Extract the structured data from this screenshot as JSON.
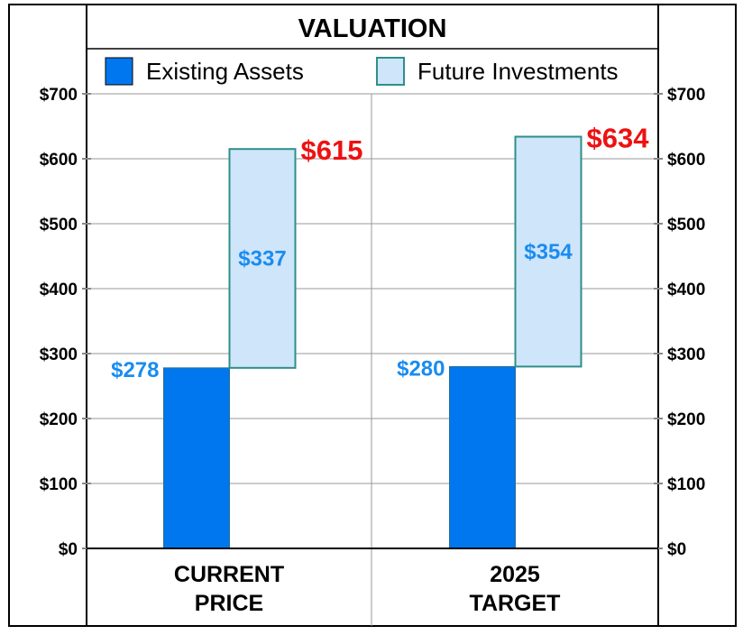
{
  "chart_data": {
    "type": "bar",
    "stacked": true,
    "title": "VALUATION",
    "categories": [
      "CURRENT PRICE",
      "2025 TARGET"
    ],
    "category_lines": [
      [
        "CURRENT",
        "PRICE"
      ],
      [
        "2025",
        "TARGET"
      ]
    ],
    "series": [
      {
        "name": "Existing Assets",
        "values": [
          278,
          280
        ],
        "labels": [
          "$278",
          "$280"
        ]
      },
      {
        "name": "Future Investments",
        "values": [
          337,
          354
        ],
        "labels": [
          "$337",
          "$354"
        ]
      }
    ],
    "totals": [
      615,
      634
    ],
    "total_labels": [
      "$615",
      "$634"
    ],
    "y_ticks": [
      "$0",
      "$100",
      "$200",
      "$300",
      "$400",
      "$500",
      "$600",
      "$700"
    ],
    "ylim": [
      0,
      700
    ],
    "grid": true,
    "legend_position": "top"
  },
  "colors": {
    "existing_fill": "#0077ee",
    "existing_label": "#1a8cf0",
    "future_fill": "#cfe5fa",
    "future_border": "#2e8f8a",
    "total_label": "#ee1111",
    "grid": "#999999"
  }
}
